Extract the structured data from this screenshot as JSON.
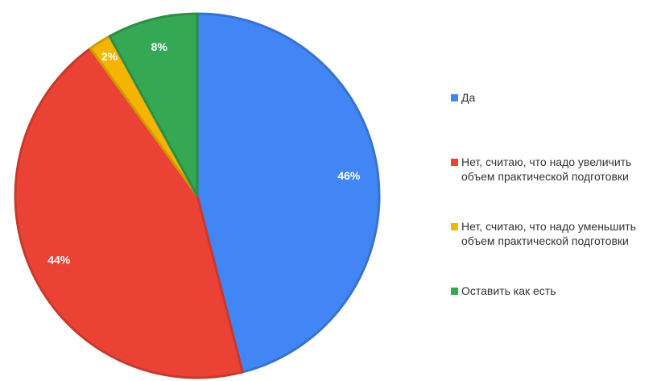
{
  "chart_data": {
    "type": "pie",
    "categories": [
      "Да",
      "Нет, считаю, что надо увеличить объем практической подготовки",
      "Нет, считаю, что надо уменьшить объем практической подготовки",
      "Оставить как есть"
    ],
    "values": [
      46,
      44,
      2,
      8
    ],
    "value_labels": [
      "46%",
      "44%",
      "2%",
      "8%"
    ],
    "colors": [
      "#4285f4",
      "#ea4335",
      "#f4b400",
      "#34a853"
    ],
    "legend": "right"
  }
}
